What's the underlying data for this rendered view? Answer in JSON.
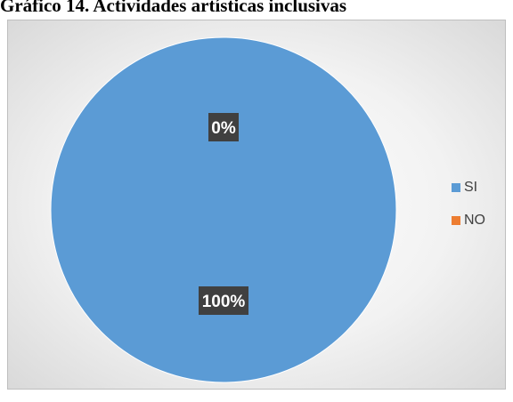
{
  "title": "Gráfico 14. Actividades artísticas inclusivas",
  "chart_data": {
    "type": "pie",
    "title": "Gráfico 14. Actividades artísticas inclusivas",
    "categories": [
      "SI",
      "NO"
    ],
    "values": [
      100,
      0
    ],
    "data_labels": [
      "100%",
      "0%"
    ],
    "colors": [
      "#5b9bd5",
      "#ed7d31"
    ],
    "legend_position": "right",
    "label_style": "dark-box"
  }
}
